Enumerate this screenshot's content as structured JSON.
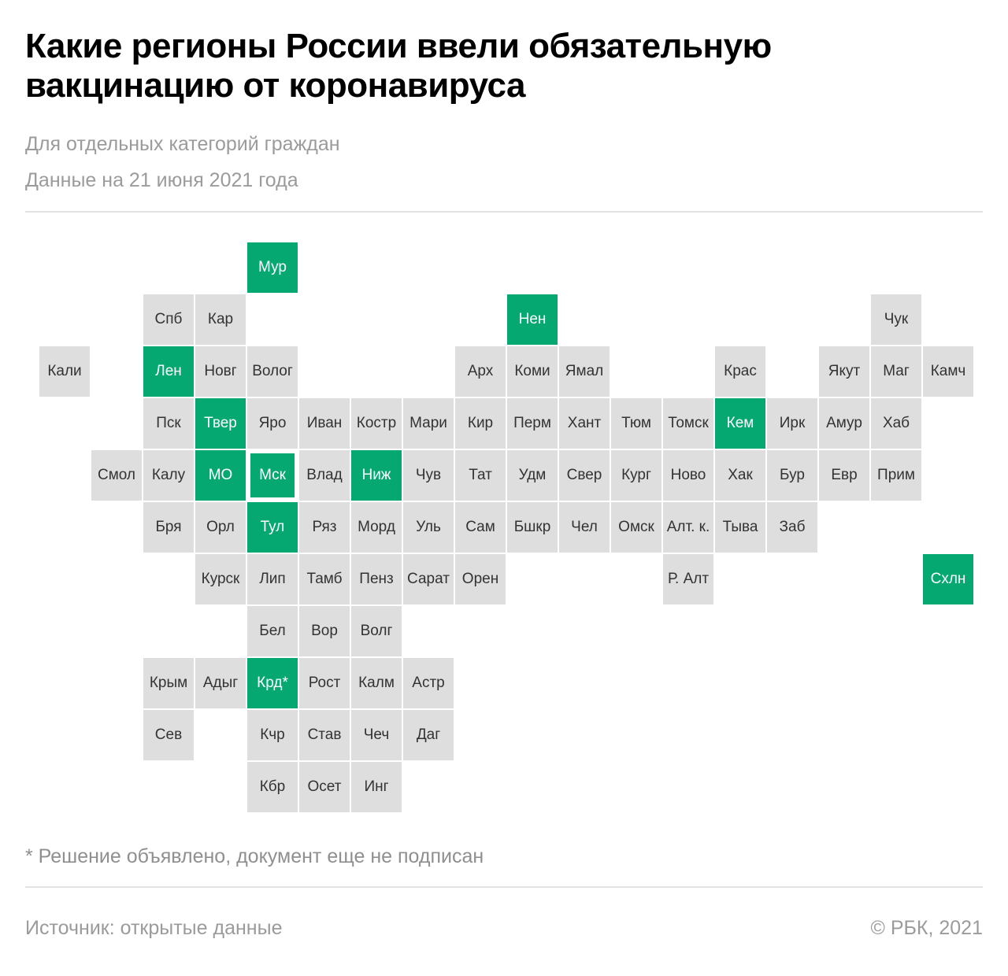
{
  "header": {
    "title": "Какие регионы России ввели обязательную вакцинацию от коронавируса",
    "subtitle": "Для отдельных категорий граждан",
    "date": "Данные на 21 июня 2021 года"
  },
  "colors": {
    "mandatory": "#06a871",
    "other": "#dedede"
  },
  "regions": [
    {
      "label": "Мур",
      "mandatory": true
    },
    {
      "label": "Спб",
      "mandatory": false
    },
    {
      "label": "Кар",
      "mandatory": false
    },
    {
      "label": "Нен",
      "mandatory": true
    },
    {
      "label": "Чук",
      "mandatory": false
    },
    {
      "label": "Кали",
      "mandatory": false
    },
    {
      "label": "Лен",
      "mandatory": true
    },
    {
      "label": "Новг",
      "mandatory": false
    },
    {
      "label": "Волог",
      "mandatory": false
    },
    {
      "label": "Арх",
      "mandatory": false
    },
    {
      "label": "Коми",
      "mandatory": false
    },
    {
      "label": "Ямал",
      "mandatory": false
    },
    {
      "label": "Крас",
      "mandatory": false
    },
    {
      "label": "Якут",
      "mandatory": false
    },
    {
      "label": "Маг",
      "mandatory": false
    },
    {
      "label": "Камч",
      "mandatory": false
    },
    {
      "label": "Пск",
      "mandatory": false
    },
    {
      "label": "Твер",
      "mandatory": true
    },
    {
      "label": "Яро",
      "mandatory": false
    },
    {
      "label": "Иван",
      "mandatory": false
    },
    {
      "label": "Костр",
      "mandatory": false
    },
    {
      "label": "Мари",
      "mandatory": false
    },
    {
      "label": "Кир",
      "mandatory": false
    },
    {
      "label": "Перм",
      "mandatory": false
    },
    {
      "label": "Хант",
      "mandatory": false
    },
    {
      "label": "Тюм",
      "mandatory": false
    },
    {
      "label": "Томск",
      "mandatory": false
    },
    {
      "label": "Кем",
      "mandatory": true
    },
    {
      "label": "Ирк",
      "mandatory": false
    },
    {
      "label": "Амур",
      "mandatory": false
    },
    {
      "label": "Хаб",
      "mandatory": false
    },
    {
      "label": "Смол",
      "mandatory": false
    },
    {
      "label": "Калу",
      "mandatory": false
    },
    {
      "label": "МО",
      "mandatory": true
    },
    {
      "label": "Мск",
      "mandatory": true
    },
    {
      "label": "Влад",
      "mandatory": false
    },
    {
      "label": "Ниж",
      "mandatory": true
    },
    {
      "label": "Чув",
      "mandatory": false
    },
    {
      "label": "Тат",
      "mandatory": false
    },
    {
      "label": "Удм",
      "mandatory": false
    },
    {
      "label": "Свер",
      "mandatory": false
    },
    {
      "label": "Кург",
      "mandatory": false
    },
    {
      "label": "Ново",
      "mandatory": false
    },
    {
      "label": "Хак",
      "mandatory": false
    },
    {
      "label": "Бур",
      "mandatory": false
    },
    {
      "label": "Евр",
      "mandatory": false
    },
    {
      "label": "Прим",
      "mandatory": false
    },
    {
      "label": "Бря",
      "mandatory": false
    },
    {
      "label": "Орл",
      "mandatory": false
    },
    {
      "label": "Тул",
      "mandatory": true
    },
    {
      "label": "Ряз",
      "mandatory": false
    },
    {
      "label": "Морд",
      "mandatory": false
    },
    {
      "label": "Уль",
      "mandatory": false
    },
    {
      "label": "Сам",
      "mandatory": false
    },
    {
      "label": "Бшкр",
      "mandatory": false
    },
    {
      "label": "Чел",
      "mandatory": false
    },
    {
      "label": "Омск",
      "mandatory": false
    },
    {
      "label": "Алт. к.",
      "mandatory": false
    },
    {
      "label": "Тыва",
      "mandatory": false
    },
    {
      "label": "Заб",
      "mandatory": false
    },
    {
      "label": "Курск",
      "mandatory": false
    },
    {
      "label": "Лип",
      "mandatory": false
    },
    {
      "label": "Тамб",
      "mandatory": false
    },
    {
      "label": "Пенз",
      "mandatory": false
    },
    {
      "label": "Сарат",
      "mandatory": false
    },
    {
      "label": "Орен",
      "mandatory": false
    },
    {
      "label": "Р. Алт",
      "mandatory": false
    },
    {
      "label": "Схлн",
      "mandatory": true
    },
    {
      "label": "Бел",
      "mandatory": false
    },
    {
      "label": "Вор",
      "mandatory": false
    },
    {
      "label": "Волг",
      "mandatory": false
    },
    {
      "label": "Крым",
      "mandatory": false
    },
    {
      "label": "Адыг",
      "mandatory": false
    },
    {
      "label": "Крд*",
      "mandatory": true
    },
    {
      "label": "Рост",
      "mandatory": false
    },
    {
      "label": "Калм",
      "mandatory": false
    },
    {
      "label": "Астр",
      "mandatory": false
    },
    {
      "label": "Сев",
      "mandatory": false
    },
    {
      "label": "Кчр",
      "mandatory": false
    },
    {
      "label": "Став",
      "mandatory": false
    },
    {
      "label": "Чеч",
      "mandatory": false
    },
    {
      "label": "Даг",
      "mandatory": false
    },
    {
      "label": "Кбр",
      "mandatory": false
    },
    {
      "label": "Осет",
      "mandatory": false
    },
    {
      "label": "Инг",
      "mandatory": false
    }
  ],
  "footnote": "* Решение объявлено, документ еще не подписан",
  "footer": {
    "source": "Источник:  открытые данные",
    "copyright": "©  РБК, 2021"
  }
}
